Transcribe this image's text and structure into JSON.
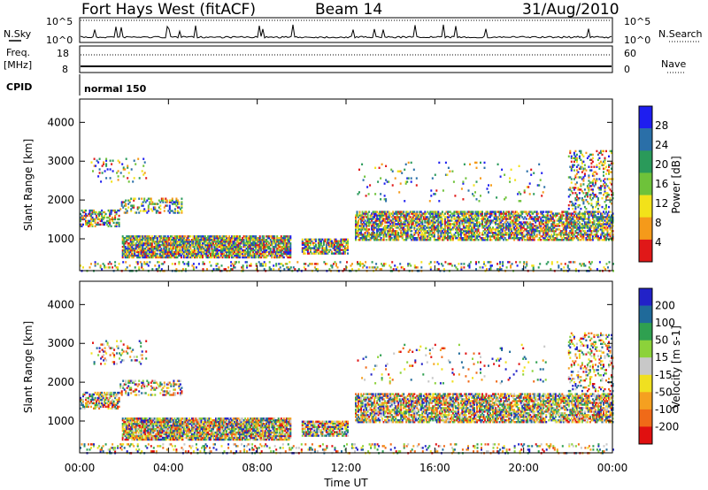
{
  "header": {
    "station": "Fort Hays West (fitACF)",
    "beam": "Beam 14",
    "date": "31/Aug/2010"
  },
  "panels": {
    "nsky": {
      "label": "N.Sky",
      "ticks": [
        "10^5",
        "10^0"
      ],
      "right_label": "N.Search",
      "right_ticks": [
        "10^5",
        "10^0"
      ]
    },
    "freq": {
      "label_line1": "Freq.",
      "label_line2": "[MHz]",
      "ticks": [
        "18",
        "8"
      ],
      "right_label": "Nave",
      "right_ticks": [
        "60",
        "0"
      ]
    },
    "cpid": {
      "label": "CPID",
      "value": "normal 150"
    }
  },
  "chart_data": [
    {
      "type": "heatmap",
      "name": "power",
      "ylabel": "Slant Range [km]",
      "xlabel": "Time UT",
      "x_ticks": [
        "00:00",
        "04:00",
        "08:00",
        "12:00",
        "16:00",
        "20:00",
        "00:00"
      ],
      "y_ticks": [
        1000,
        2000,
        3000,
        4000
      ],
      "ylim": [
        180,
        4600
      ],
      "xlim": [
        0,
        24
      ],
      "colorbar": {
        "label": "Power [dB]",
        "ticks": [
          "4",
          "8",
          "12",
          "16",
          "20",
          "24",
          "28"
        ],
        "colors": [
          "#1e1ef0",
          "#2a6fa8",
          "#2a9a5a",
          "#6ec23a",
          "#f2e21a",
          "#f59a1a",
          "#e01818"
        ]
      }
    },
    {
      "type": "heatmap",
      "name": "velocity",
      "ylabel": "Slant Range [km]",
      "xlabel": "Time UT",
      "x_ticks": [
        "00:00",
        "04:00",
        "08:00",
        "12:00",
        "16:00",
        "20:00",
        "00:00"
      ],
      "y_ticks": [
        1000,
        2000,
        3000,
        4000
      ],
      "ylim": [
        180,
        4600
      ],
      "xlim": [
        0,
        24
      ],
      "colorbar": {
        "label": "Velocity [m s-1]",
        "ticks": [
          "200",
          "100",
          "50",
          "15",
          "-15",
          "-50",
          "-100",
          "-200"
        ],
        "colors": [
          "#2222c8",
          "#1f6a9a",
          "#2fa050",
          "#8cd23a",
          "#c8c8c8",
          "#f0e020",
          "#f5a020",
          "#f06a18",
          "#e01010"
        ]
      }
    }
  ],
  "colors": {
    "axis": "#000000"
  }
}
